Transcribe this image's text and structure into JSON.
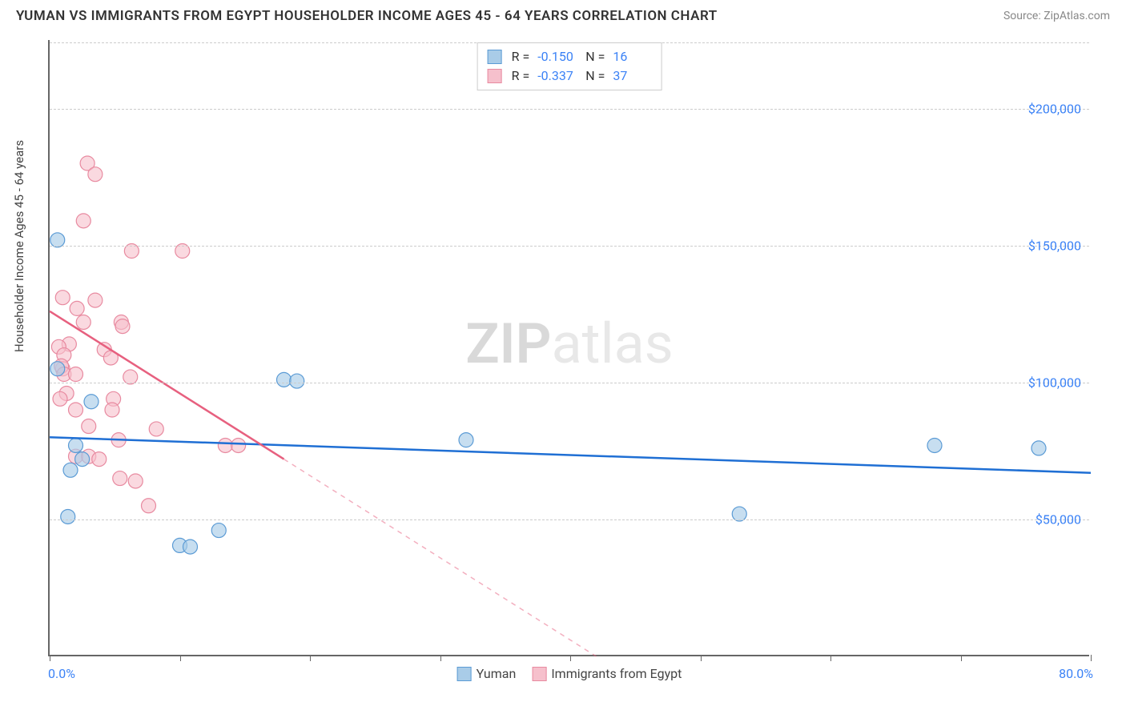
{
  "header": {
    "title": "YUMAN VS IMMIGRANTS FROM EGYPT HOUSEHOLDER INCOME AGES 45 - 64 YEARS CORRELATION CHART",
    "source": "Source: ZipAtlas.com"
  },
  "chart": {
    "type": "scatter",
    "y_label": "Householder Income Ages 45 - 64 years",
    "watermark_bold": "ZIP",
    "watermark_light": "atlas",
    "background_color": "#ffffff",
    "grid_color": "#cccccc",
    "axis_color": "#666666",
    "xlim": [
      0,
      80
    ],
    "ylim": [
      0,
      225000
    ],
    "x_tick_label_min": "0.0%",
    "x_tick_label_max": "80.0%",
    "x_ticks": [
      0,
      10,
      20,
      30,
      40,
      50,
      60,
      70,
      80
    ],
    "y_ticks": [
      {
        "v": 50000,
        "label": "$50,000"
      },
      {
        "v": 100000,
        "label": "$100,000"
      },
      {
        "v": 150000,
        "label": "$150,000"
      },
      {
        "v": 200000,
        "label": "$200,000"
      }
    ],
    "series": [
      {
        "name": "Yuman",
        "color_fill": "#a9cce8",
        "color_stroke": "#5b9bd5",
        "line_color": "#1f6fd4",
        "marker_radius": 9,
        "marker_opacity": 0.65,
        "r_label": "R =",
        "r_value": "-0.150",
        "n_label": "N =",
        "n_value": "16",
        "regression": {
          "x1": 0,
          "y1": 80000,
          "x2": 80,
          "y2": 67000,
          "dash_from_x": null
        },
        "points": [
          {
            "x": 0.6,
            "y": 152000
          },
          {
            "x": 0.6,
            "y": 105000
          },
          {
            "x": 3.2,
            "y": 93000
          },
          {
            "x": 2.0,
            "y": 77000
          },
          {
            "x": 1.6,
            "y": 68000
          },
          {
            "x": 2.5,
            "y": 72000
          },
          {
            "x": 1.4,
            "y": 51000
          },
          {
            "x": 18.0,
            "y": 101000
          },
          {
            "x": 19.0,
            "y": 100500
          },
          {
            "x": 32.0,
            "y": 79000
          },
          {
            "x": 53.0,
            "y": 52000
          },
          {
            "x": 13.0,
            "y": 46000
          },
          {
            "x": 10.0,
            "y": 40500
          },
          {
            "x": 10.8,
            "y": 40000
          },
          {
            "x": 68.0,
            "y": 77000
          },
          {
            "x": 76.0,
            "y": 76000
          }
        ]
      },
      {
        "name": "Immigrants from Egypt",
        "color_fill": "#f6c0cc",
        "color_stroke": "#e88aa0",
        "line_color": "#e7607f",
        "marker_radius": 9,
        "marker_opacity": 0.6,
        "r_label": "R =",
        "r_value": "-0.337",
        "n_label": "N =",
        "n_value": "37",
        "regression": {
          "x1": 0,
          "y1": 126000,
          "x2": 42,
          "y2": 0,
          "dash_from_x": 18
        },
        "points": [
          {
            "x": 2.9,
            "y": 180000
          },
          {
            "x": 3.5,
            "y": 176000
          },
          {
            "x": 2.6,
            "y": 159000
          },
          {
            "x": 6.3,
            "y": 148000
          },
          {
            "x": 10.2,
            "y": 148000
          },
          {
            "x": 1.0,
            "y": 131000
          },
          {
            "x": 3.5,
            "y": 130000
          },
          {
            "x": 2.1,
            "y": 127000
          },
          {
            "x": 2.6,
            "y": 122000
          },
          {
            "x": 5.5,
            "y": 122000
          },
          {
            "x": 5.6,
            "y": 120500
          },
          {
            "x": 1.5,
            "y": 114000
          },
          {
            "x": 0.7,
            "y": 113000
          },
          {
            "x": 1.1,
            "y": 110000
          },
          {
            "x": 4.2,
            "y": 112000
          },
          {
            "x": 1.0,
            "y": 105000
          },
          {
            "x": 0.9,
            "y": 106000
          },
          {
            "x": 4.7,
            "y": 109000
          },
          {
            "x": 1.1,
            "y": 103000
          },
          {
            "x": 2.0,
            "y": 103000
          },
          {
            "x": 6.2,
            "y": 102000
          },
          {
            "x": 1.3,
            "y": 96000
          },
          {
            "x": 0.8,
            "y": 94000
          },
          {
            "x": 4.9,
            "y": 94000
          },
          {
            "x": 2.0,
            "y": 90000
          },
          {
            "x": 4.8,
            "y": 90000
          },
          {
            "x": 3.0,
            "y": 84000
          },
          {
            "x": 8.2,
            "y": 83000
          },
          {
            "x": 5.3,
            "y": 79000
          },
          {
            "x": 13.5,
            "y": 77000
          },
          {
            "x": 14.5,
            "y": 77000
          },
          {
            "x": 2.0,
            "y": 73000
          },
          {
            "x": 3.0,
            "y": 73000
          },
          {
            "x": 3.8,
            "y": 72000
          },
          {
            "x": 5.4,
            "y": 65000
          },
          {
            "x": 6.6,
            "y": 64000
          },
          {
            "x": 7.6,
            "y": 55000
          }
        ]
      }
    ]
  },
  "legend_bottom": {
    "items": [
      "Yuman",
      "Immigrants from Egypt"
    ]
  }
}
